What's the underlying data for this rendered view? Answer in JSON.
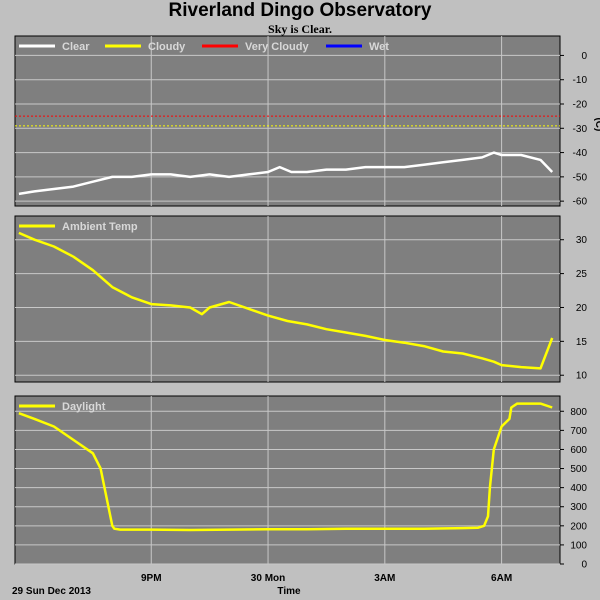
{
  "title": "Riverland Dingo Observatory",
  "subtitle": "Sky is Clear.",
  "colors": {
    "background": "#c0c0c0",
    "panel": "#7f7f7f",
    "grid": "#c8c8c8",
    "clear": "#ffffff",
    "cloudy": "#ffff00",
    "very_cloudy": "#ff0000",
    "wet": "#0000ff"
  },
  "footer": {
    "date": "29 Sun Dec 2013",
    "xlabel": "Time"
  },
  "x_ticks": [
    {
      "hour": 21,
      "label": "9PM"
    },
    {
      "hour": 24,
      "label": "30 Mon"
    },
    {
      "hour": 27,
      "label": "3AM"
    },
    {
      "hour": 30,
      "label": "6AM"
    }
  ],
  "chart_data": [
    {
      "type": "line",
      "name": "sky",
      "xlim": [
        17.5,
        31.5
      ],
      "ylim": [
        -62,
        8
      ],
      "yticks": [
        0,
        -10,
        -20,
        -30,
        -40,
        -50,
        -60
      ],
      "ylabel": "(C)",
      "legend": [
        {
          "name": "Clear",
          "color": "#ffffff"
        },
        {
          "name": "Cloudy",
          "color": "#ffff00"
        },
        {
          "name": "Very Cloudy",
          "color": "#ff0000"
        },
        {
          "name": "Wet",
          "color": "#0000ff"
        }
      ],
      "thresholds": [
        {
          "name": "Very Cloudy",
          "value": -25,
          "color": "#ff0000"
        },
        {
          "name": "Cloudy",
          "value": -29,
          "color": "#ffff00"
        }
      ],
      "series": [
        {
          "name": "Clear",
          "color": "#ffffff",
          "x": [
            17.6,
            18.0,
            18.5,
            19.0,
            19.5,
            20.0,
            20.5,
            21.0,
            21.5,
            22.0,
            22.5,
            23.0,
            23.5,
            24.0,
            24.3,
            24.6,
            25.0,
            25.5,
            26.0,
            26.5,
            27.0,
            27.5,
            28.0,
            28.5,
            29.0,
            29.5,
            29.8,
            30.0,
            30.5,
            31.0,
            31.3
          ],
          "y": [
            -57,
            -56,
            -55,
            -54,
            -52,
            -50,
            -50,
            -49,
            -49,
            -50,
            -49,
            -50,
            -49,
            -48,
            -46,
            -48,
            -48,
            -47,
            -47,
            -46,
            -46,
            -46,
            -45,
            -44,
            -43,
            -42,
            -40,
            -41,
            -41,
            -43,
            -48
          ]
        }
      ]
    },
    {
      "type": "line",
      "name": "ambient",
      "xlim": [
        17.5,
        31.5
      ],
      "ylim": [
        9,
        33.5
      ],
      "yticks": [
        30,
        25,
        20,
        15,
        10
      ],
      "ylabel": "",
      "legend": [
        {
          "name": "Ambient Temp",
          "color": "#ffff00"
        }
      ],
      "series": [
        {
          "name": "Ambient Temp",
          "color": "#ffff00",
          "x": [
            17.6,
            18.0,
            18.5,
            19.0,
            19.5,
            20.0,
            20.5,
            21.0,
            21.5,
            22.0,
            22.3,
            22.5,
            23.0,
            23.5,
            24.0,
            24.5,
            25.0,
            25.5,
            26.0,
            26.5,
            27.0,
            27.5,
            28.0,
            28.5,
            29.0,
            29.5,
            29.8,
            30.0,
            30.5,
            31.0,
            31.3
          ],
          "y": [
            31,
            30,
            29,
            27.5,
            25.5,
            23,
            21.5,
            20.5,
            20.3,
            20,
            19,
            20,
            20.8,
            19.8,
            18.8,
            18,
            17.5,
            16.8,
            16.3,
            15.8,
            15.2,
            14.8,
            14.3,
            13.5,
            13.2,
            12.5,
            12,
            11.5,
            11.2,
            11,
            15.5
          ]
        }
      ]
    },
    {
      "type": "line",
      "name": "daylight",
      "xlim": [
        17.5,
        31.5
      ],
      "ylim": [
        0,
        880
      ],
      "yticks": [
        800,
        700,
        600,
        500,
        400,
        300,
        200,
        100,
        0
      ],
      "ylabel": "",
      "legend": [
        {
          "name": "Daylight",
          "color": "#ffff00"
        }
      ],
      "series": [
        {
          "name": "Daylight",
          "color": "#ffff00",
          "x": [
            17.6,
            18.0,
            18.5,
            19.0,
            19.5,
            19.7,
            19.9,
            20.0,
            20.05,
            20.2,
            21.0,
            22.0,
            23.0,
            24.0,
            25.0,
            26.0,
            27.0,
            28.0,
            29.0,
            29.4,
            29.55,
            29.65,
            29.7,
            29.8,
            30.0,
            30.2,
            30.25,
            30.4,
            31.0,
            31.3
          ],
          "y": [
            790,
            760,
            720,
            650,
            580,
            500,
            300,
            200,
            185,
            180,
            180,
            178,
            180,
            182,
            182,
            185,
            185,
            185,
            188,
            190,
            200,
            250,
            400,
            600,
            720,
            760,
            820,
            840,
            840,
            820
          ]
        }
      ]
    }
  ]
}
